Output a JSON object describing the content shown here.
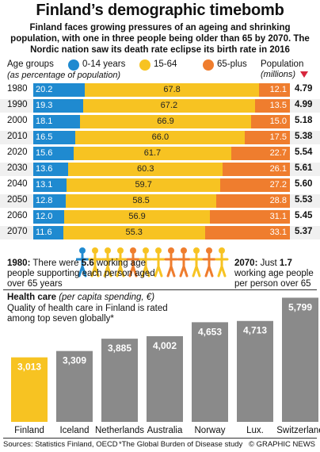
{
  "header": {
    "title": "Finland’s demographic timebomb",
    "subtitle": "Finland faces growing pressures of an ageing and shrinking population, with one in three people being older than 65 by 2070. The Nordic nation saw its death rate eclipse its birth rate in 2016"
  },
  "legend": {
    "heading": "Age groups",
    "subheading": "(as percentage of population)",
    "items": [
      {
        "label": "0-14 years",
        "color": "#1f8ad0"
      },
      {
        "label": "15-64",
        "color": "#f7c322"
      },
      {
        "label": "65-plus",
        "color": "#ef7d2e"
      }
    ],
    "population_heading": "Population",
    "population_unit": "(millions)"
  },
  "stats": {
    "left_year": "1980:",
    "left_text_a": " There were ",
    "left_value": "5.6",
    "left_text_b": " working age people supporting each person aged over 65 years",
    "right_year": "2070:",
    "right_text_a": " Just ",
    "right_value": "1.7",
    "right_text_b": " working age people per person over 65"
  },
  "health": {
    "title": "Health care",
    "unit": " (per capita spending, €)",
    "note": "Quality of health care in Finland is rated among top seven globally*"
  },
  "footer": {
    "sources": "Sources: Statistics Finland, OECD",
    "footnote": "*The Global Burden of Disease study",
    "credit": "© GRAPHIC NEWS"
  },
  "chart_data": [
    {
      "type": "bar",
      "orientation": "horizontal",
      "stacked": true,
      "categories": [
        "1980",
        "1990",
        "2000",
        "2010",
        "2020",
        "2030",
        "2040",
        "2050",
        "2060",
        "2070"
      ],
      "series": [
        {
          "name": "0-14 years",
          "color": "#1f8ad0",
          "values": [
            20.2,
            19.3,
            18.1,
            16.5,
            15.6,
            13.6,
            13.1,
            12.8,
            12.0,
            11.6
          ]
        },
        {
          "name": "15-64",
          "color": "#f7c322",
          "values": [
            67.8,
            67.2,
            66.9,
            66.0,
            61.7,
            60.3,
            59.7,
            58.5,
            56.9,
            55.3
          ]
        },
        {
          "name": "65-plus",
          "color": "#ef7d2e",
          "values": [
            12.1,
            13.5,
            15.0,
            17.5,
            22.7,
            26.1,
            27.2,
            28.8,
            31.1,
            33.1
          ]
        }
      ],
      "population_millions": [
        4.79,
        4.99,
        5.18,
        5.38,
        5.54,
        5.61,
        5.6,
        5.53,
        5.45,
        5.37
      ]
    },
    {
      "type": "bar",
      "categories": [
        "Finland",
        "Iceland",
        "Netherlands",
        "Australia",
        "Norway",
        "Lux.",
        "Switzerland"
      ],
      "values": [
        3013,
        3309,
        3885,
        4002,
        4653,
        4713,
        5799
      ],
      "value_labels": [
        "3,013",
        "3,309",
        "3,885",
        "4,002",
        "4,653",
        "4,713",
        "5,799"
      ],
      "colors": {
        "bar": "#8a8a8a",
        "highlight": "#f7c322"
      }
    }
  ]
}
